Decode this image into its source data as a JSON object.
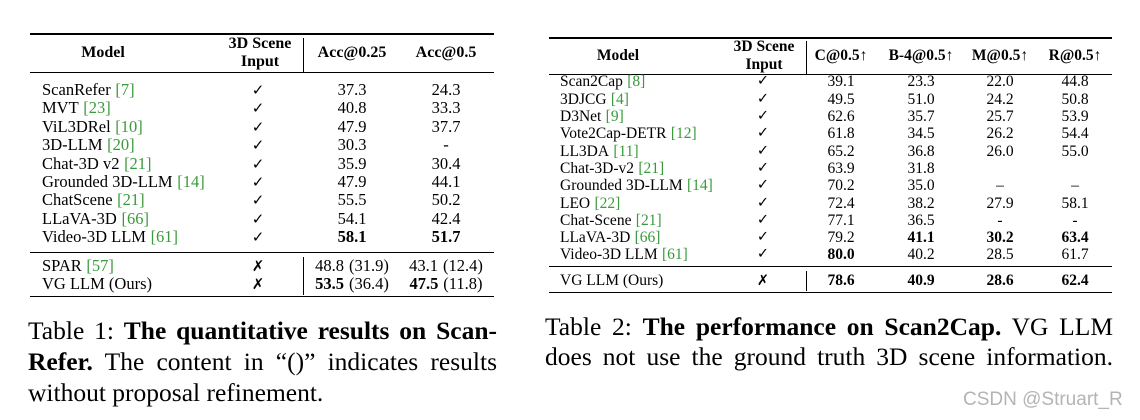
{
  "colors": {
    "text": "#000000",
    "citation": "#3b9a3b",
    "watermark": "#b4b4b4"
  },
  "table1": {
    "header": {
      "model": "Model",
      "input_line1": "3D Scene",
      "input_line2": "Input",
      "cols": [
        "Acc@0.25",
        "Acc@0.5"
      ]
    },
    "rows": [
      {
        "model": "ScanRefer",
        "cite": "[7]",
        "input": "✓",
        "v": [
          "37.3",
          "24.3"
        ],
        "bold": [
          false,
          false
        ]
      },
      {
        "model": "MVT",
        "cite": "[23]",
        "input": "✓",
        "v": [
          "40.8",
          "33.3"
        ],
        "bold": [
          false,
          false
        ]
      },
      {
        "model": "ViL3DRel",
        "cite": "[10]",
        "input": "✓",
        "v": [
          "47.9",
          "37.7"
        ],
        "bold": [
          false,
          false
        ]
      },
      {
        "model": "3D-LLM",
        "cite": "[20]",
        "input": "✓",
        "v": [
          "30.3",
          "-"
        ],
        "bold": [
          false,
          false
        ]
      },
      {
        "model": "Chat-3D v2",
        "cite": "[21]",
        "input": "✓",
        "v": [
          "35.9",
          "30.4"
        ],
        "bold": [
          false,
          false
        ]
      },
      {
        "model": "Grounded 3D-LLM",
        "cite": "[14]",
        "input": "✓",
        "v": [
          "47.9",
          "44.1"
        ],
        "bold": [
          false,
          false
        ]
      },
      {
        "model": "ChatScene",
        "cite": "[21]",
        "input": "✓",
        "v": [
          "55.5",
          "50.2"
        ],
        "bold": [
          false,
          false
        ]
      },
      {
        "model": "LLaVA-3D",
        "cite": "[66]",
        "input": "✓",
        "v": [
          "54.1",
          "42.4"
        ],
        "bold": [
          false,
          false
        ]
      },
      {
        "model": "Video-3D LLM",
        "cite": "[61]",
        "input": "✓",
        "v": [
          "58.1",
          "51.7"
        ],
        "bold": [
          true,
          true
        ]
      }
    ],
    "ours_rows": [
      {
        "model": "SPAR",
        "cite": "[57]",
        "input": "✗",
        "v": [
          "48.8",
          "43.1"
        ],
        "paren": [
          "(31.9)",
          "(12.4)"
        ],
        "bold": [
          false,
          false
        ]
      },
      {
        "model": "VG LLM (Ours)",
        "cite": "",
        "input": "✗",
        "v": [
          "53.5",
          "47.5"
        ],
        "paren": [
          "(36.4)",
          "(11.8)"
        ],
        "bold": [
          true,
          true
        ]
      }
    ],
    "caption": {
      "lines": [
        {
          "segments": [
            {
              "text": "Table 1: ",
              "bold": false
            },
            {
              "text": "The quantitative results on Scan-",
              "bold": true
            }
          ]
        },
        {
          "segments": [
            {
              "text": "Refer.",
              "bold": true
            },
            {
              "text": " The content in “()” indicates results",
              "bold": false
            }
          ]
        },
        {
          "segments": [
            {
              "text": "without proposal refinement.",
              "bold": false
            }
          ]
        }
      ]
    }
  },
  "table2": {
    "header": {
      "model": "Model",
      "input_line1": "3D Scene",
      "input_line2": "Input",
      "cols": [
        "C@0.5↑",
        "B-4@0.5↑",
        "M@0.5↑",
        "R@0.5↑"
      ]
    },
    "rows": [
      {
        "model": "Scan2Cap",
        "cite": "[8]",
        "input": "✓",
        "v": [
          "39.1",
          "23.3",
          "22.0",
          "44.8"
        ],
        "bold": [
          false,
          false,
          false,
          false
        ]
      },
      {
        "model": "3DJCG",
        "cite": "[4]",
        "input": "✓",
        "v": [
          "49.5",
          "51.0",
          "24.2",
          "50.8"
        ],
        "bold": [
          false,
          false,
          false,
          false
        ]
      },
      {
        "model": "D3Net",
        "cite": "[9]",
        "input": "✓",
        "v": [
          "62.6",
          "35.7",
          "25.7",
          "53.9"
        ],
        "bold": [
          false,
          false,
          false,
          false
        ]
      },
      {
        "model": "Vote2Cap-DETR",
        "cite": "[12]",
        "input": "✓",
        "v": [
          "61.8",
          "34.5",
          "26.2",
          "54.4"
        ],
        "bold": [
          false,
          false,
          false,
          false
        ]
      },
      {
        "model": "LL3DA",
        "cite": "[11]",
        "input": "✓",
        "v": [
          "65.2",
          "36.8",
          "26.0",
          "55.0"
        ],
        "bold": [
          false,
          false,
          false,
          false
        ]
      },
      {
        "model": "Chat-3D-v2",
        "cite": "[21]",
        "input": "✓",
        "v": [
          "63.9",
          "31.8",
          "",
          ""
        ],
        "bold": [
          false,
          false,
          false,
          false
        ]
      },
      {
        "model": "Grounded 3D-LLM",
        "cite": "[14]",
        "input": "✓",
        "v": [
          "70.2",
          "35.0",
          "–",
          "–"
        ],
        "bold": [
          false,
          false,
          false,
          false
        ]
      },
      {
        "model": "LEO",
        "cite": "[22]",
        "input": "✓",
        "v": [
          "72.4",
          "38.2",
          "27.9",
          "58.1"
        ],
        "bold": [
          false,
          false,
          false,
          false
        ]
      },
      {
        "model": "Chat-Scene",
        "cite": "[21]",
        "input": "✓",
        "v": [
          "77.1",
          "36.5",
          "-",
          "-"
        ],
        "bold": [
          false,
          false,
          false,
          false
        ]
      },
      {
        "model": "LLaVA-3D",
        "cite": "[66]",
        "input": "✓",
        "v": [
          "79.2",
          "41.1",
          "30.2",
          "63.4"
        ],
        "bold": [
          false,
          true,
          true,
          true
        ]
      },
      {
        "model": "Video-3D LLM",
        "cite": "[61]",
        "input": "✓",
        "v": [
          "80.0",
          "40.2",
          "28.5",
          "61.7"
        ],
        "bold": [
          true,
          false,
          false,
          false
        ]
      }
    ],
    "ours_rows": [
      {
        "model": "VG LLM (Ours)",
        "cite": "",
        "input": "✗",
        "v": [
          "78.6",
          "40.9",
          "28.6",
          "62.4"
        ],
        "bold": [
          true,
          true,
          true,
          true
        ]
      }
    ],
    "caption": {
      "lines": [
        {
          "segments": [
            {
              "text": "Table 2: ",
              "bold": false
            },
            {
              "text": "The performance on Scan2Cap.",
              "bold": true
            },
            {
              "text": " VG LLM",
              "bold": false
            }
          ]
        },
        {
          "segments": [
            {
              "text": "does not use the ground truth 3D scene information.",
              "bold": false
            }
          ]
        }
      ]
    }
  },
  "watermark": "CSDN @Struart_R"
}
